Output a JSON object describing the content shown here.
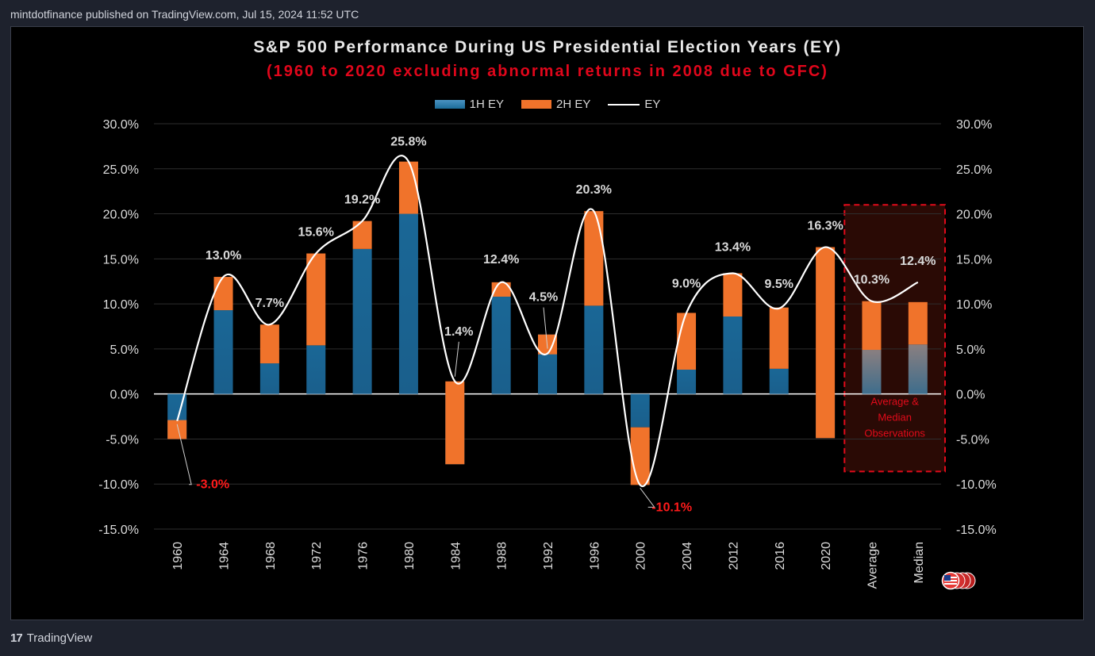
{
  "publisher_line": "mintdotfinance published on TradingView.com, Jul 15, 2024 11:52 UTC",
  "brand": {
    "logo": "17",
    "name": "TradingView"
  },
  "colors": {
    "first_half": "#1c6c99",
    "second_half": "#f0732b",
    "line": "#ffffff",
    "negative_label": "#ff1a1a",
    "highlight": "#e10a1a"
  },
  "chart_data": {
    "type": "bar",
    "title": "S&P 500 Performance During US Presidential Election Years (EY)",
    "subtitle": "(1960 to 2020 excluding abnormal returns in 2008 due to GFC)",
    "legend": [
      {
        "name": "1H EY",
        "kind": "bar"
      },
      {
        "name": "2H EY",
        "kind": "bar"
      },
      {
        "name": "EY",
        "kind": "line"
      }
    ],
    "categories": [
      "1960",
      "1964",
      "1968",
      "1972",
      "1976",
      "1980",
      "1984",
      "1988",
      "1992",
      "1996",
      "2000",
      "2004",
      "2012",
      "2016",
      "2020",
      "Average",
      "Median"
    ],
    "series": [
      {
        "name": "1H EY",
        "values": [
          -5.0,
          9.3,
          3.4,
          5.4,
          16.1,
          20.0,
          -7.8,
          10.8,
          6.6,
          9.8,
          -3.7,
          2.7,
          8.6,
          2.8,
          -4.9,
          4.9,
          5.5
        ]
      },
      {
        "name": "2H EY",
        "values": [
          2.1,
          3.7,
          4.3,
          10.2,
          3.1,
          5.8,
          9.2,
          1.6,
          -2.2,
          10.5,
          -6.4,
          6.3,
          4.8,
          6.8,
          21.2,
          5.4,
          4.7
        ]
      },
      {
        "name": "EY",
        "values": [
          -3.0,
          13.0,
          7.7,
          15.6,
          19.2,
          25.8,
          1.4,
          12.4,
          4.5,
          20.3,
          -10.1,
          9.0,
          13.4,
          9.5,
          16.3,
          10.3,
          12.4
        ]
      }
    ],
    "data_labels": [
      "-3.0%",
      "13.0%",
      "7.7%",
      "15.6%",
      "19.2%",
      "25.8%",
      "1.4%",
      "12.4%",
      "4.5%",
      "20.3%",
      "-10.1%",
      "9.0%",
      "13.4%",
      "9.5%",
      "16.3%",
      "10.3%",
      "12.4%"
    ],
    "y_ticks": [
      "30.0%",
      "25.0%",
      "20.0%",
      "15.0%",
      "10.0%",
      "5.0%",
      "0.0%",
      "-5.0%",
      "-10.0%",
      "-15.0%"
    ],
    "ylim": [
      -15,
      30
    ],
    "highlight_box": {
      "categories": [
        "Average",
        "Median"
      ],
      "note_lines": [
        "Average &",
        "Median",
        "Observations"
      ]
    }
  }
}
